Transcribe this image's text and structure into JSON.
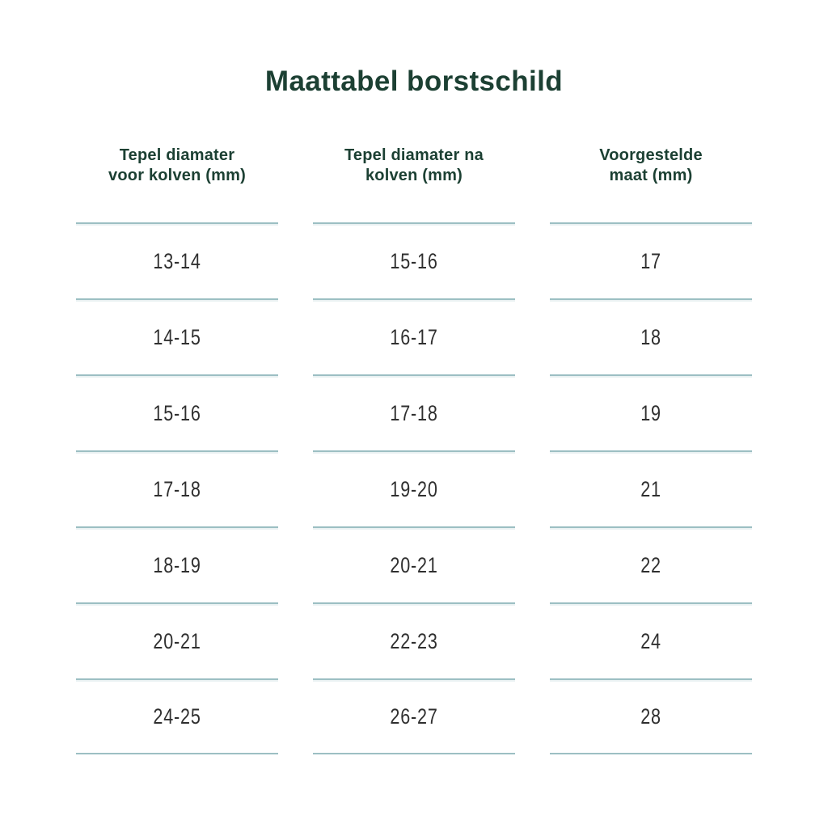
{
  "page": {
    "title": "Maattabel borstschild"
  },
  "table": {
    "columns": [
      {
        "line1": "Tepel diamater",
        "line2": "voor kolven (mm)"
      },
      {
        "line1": "Tepel diamater na",
        "line2": "kolven (mm)"
      },
      {
        "line1": "Voorgestelde",
        "line2": "maat (mm)"
      }
    ]
  },
  "chart_data": {
    "type": "table",
    "title": "Maattabel borstschild",
    "columns": [
      "Tepel diamater voor kolven (mm)",
      "Tepel diamater na kolven (mm)",
      "Voorgestelde maat (mm)"
    ],
    "rows": [
      [
        "13-14",
        "15-16",
        "17"
      ],
      [
        "14-15",
        "16-17",
        "18"
      ],
      [
        "15-16",
        "17-18",
        "19"
      ],
      [
        "17-18",
        "19-20",
        "21"
      ],
      [
        "18-19",
        "20-21",
        "22"
      ],
      [
        "20-21",
        "22-23",
        "24"
      ],
      [
        "24-25",
        "26-27",
        "28"
      ]
    ]
  },
  "colors": {
    "heading_green": "#1c4033",
    "divider_teal": "#9cbfc3",
    "value_text": "#2f2f2f",
    "background": "#ffffff"
  }
}
